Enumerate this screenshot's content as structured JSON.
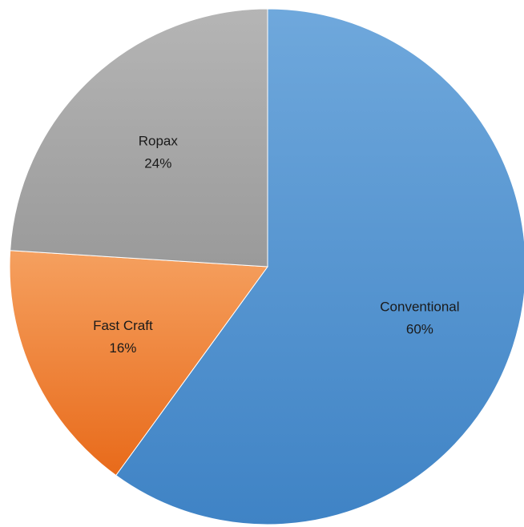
{
  "chart_data": {
    "type": "pie",
    "title": "",
    "slices": [
      {
        "label": "Conventional",
        "value": 60,
        "display": "60%",
        "color_light": "#6FA8DC",
        "color_dark": "#3F83C5"
      },
      {
        "label": "Fast Craft",
        "value": 16,
        "display": "16%",
        "color_light": "#F5A05F",
        "color_dark": "#E86A1A"
      },
      {
        "label": "Ropax",
        "value": 24,
        "display": "24%",
        "color_light": "#B5B5B5",
        "color_dark": "#9A9A9A"
      }
    ],
    "start_angle_deg": 0,
    "direction": "clockwise",
    "legend": "none",
    "data_labels": "inside"
  }
}
